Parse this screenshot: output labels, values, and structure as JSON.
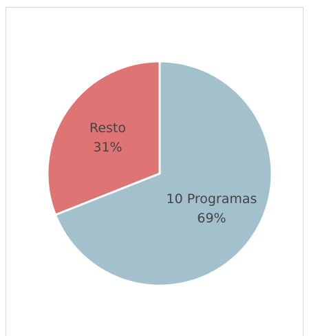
{
  "chart_data": {
    "type": "pie",
    "categories": [
      "10 Programas",
      "Resto"
    ],
    "values": [
      69,
      31
    ],
    "value_labels": [
      "69%",
      "31%"
    ],
    "colors": [
      "#a3c1cc",
      "#de7474"
    ]
  }
}
